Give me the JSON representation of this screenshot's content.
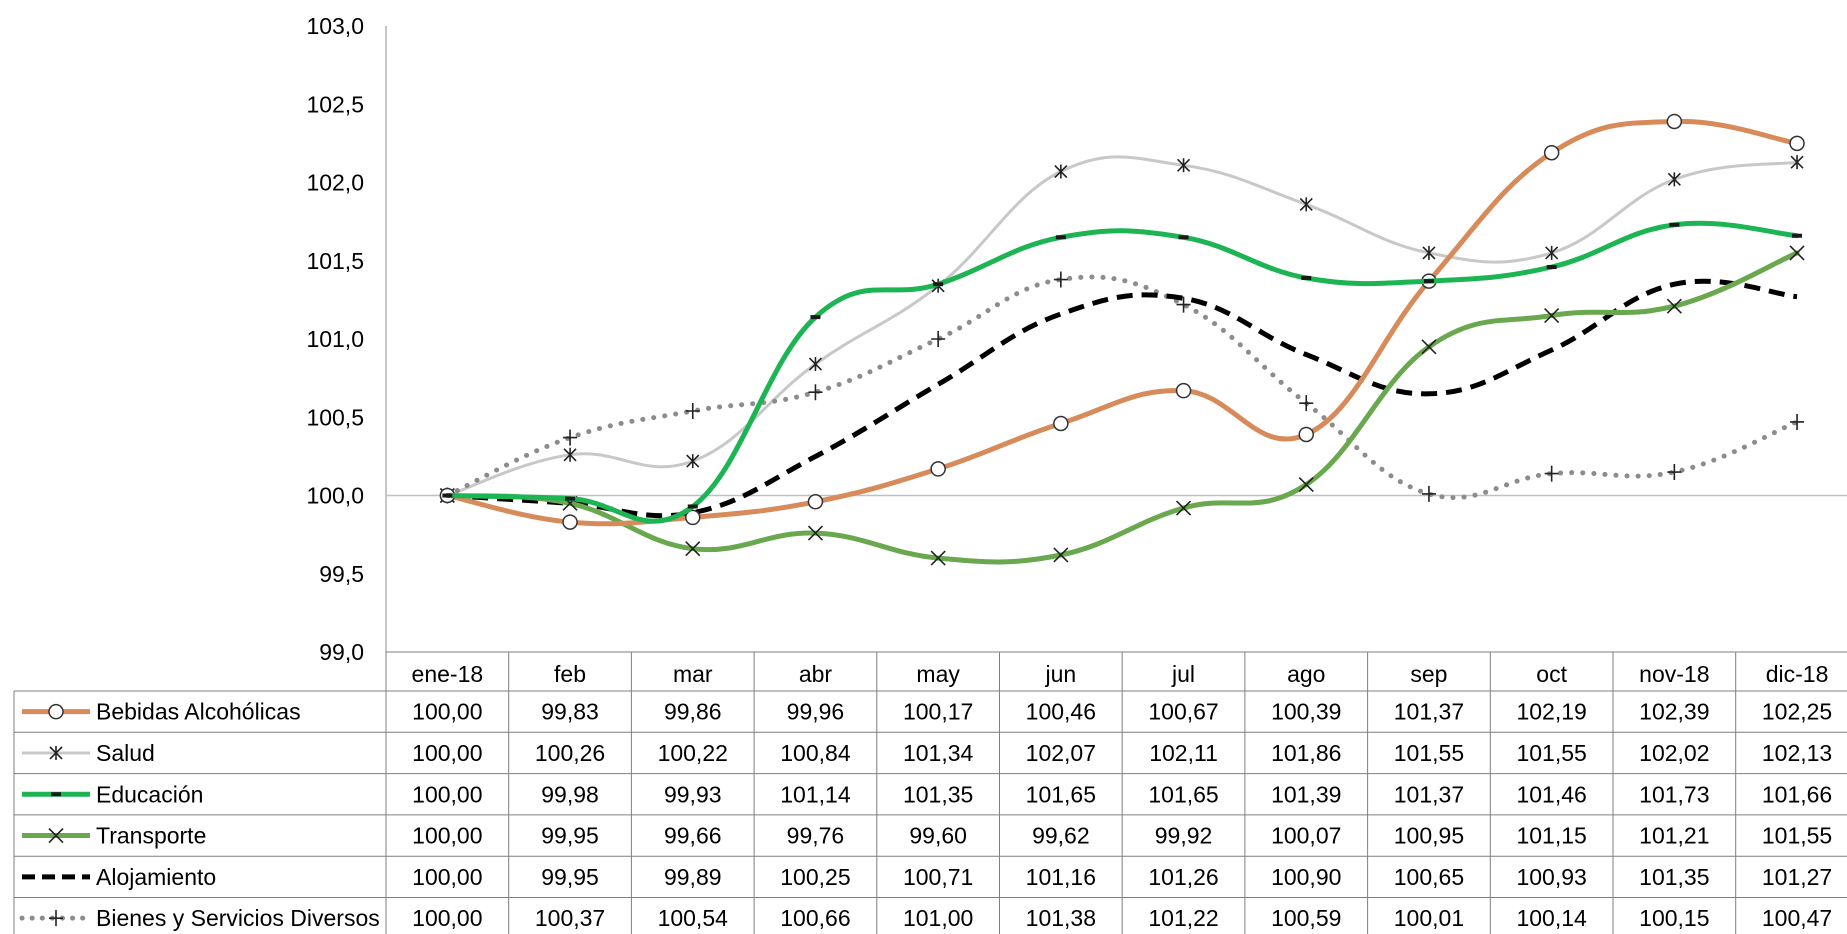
{
  "chart_data": {
    "type": "line",
    "categories": [
      "ene-18",
      "feb",
      "mar",
      "abr",
      "may",
      "jun",
      "jul",
      "ago",
      "sep",
      "oct",
      "nov-18",
      "dic-18"
    ],
    "y_ticks": [
      "99,0",
      "99,5",
      "100,0",
      "100,5",
      "101,0",
      "101,5",
      "102,0",
      "102,5",
      "103,0"
    ],
    "ylim": [
      99.0,
      103.0
    ],
    "baseline": 100.0,
    "grid": false,
    "legend": "data-table",
    "series": [
      {
        "name": "Bebidas Alcohólicas",
        "color": "#d88b5a",
        "marker": "circle",
        "dash": "solid",
        "width": 5,
        "values": [
          100.0,
          99.83,
          99.86,
          99.96,
          100.17,
          100.46,
          100.67,
          100.39,
          101.37,
          102.19,
          102.39,
          102.25
        ],
        "labels": [
          "100,00",
          "99,83",
          "99,86",
          "99,96",
          "100,17",
          "100,46",
          "100,67",
          "100,39",
          "101,37",
          "102,19",
          "102,39",
          "102,25"
        ]
      },
      {
        "name": "Salud",
        "color": "#c8c8c8",
        "marker": "star",
        "dash": "solid",
        "width": 3,
        "values": [
          100.0,
          100.26,
          100.22,
          100.84,
          101.34,
          102.07,
          102.11,
          101.86,
          101.55,
          101.55,
          102.02,
          102.13
        ],
        "labels": [
          "100,00",
          "100,26",
          "100,22",
          "100,84",
          "101,34",
          "102,07",
          "102,11",
          "101,86",
          "101,55",
          "101,55",
          "102,02",
          "102,13"
        ]
      },
      {
        "name": "Educación",
        "color": "#1db454",
        "marker": "dash",
        "dash": "solid",
        "width": 5,
        "values": [
          100.0,
          99.98,
          99.93,
          101.14,
          101.35,
          101.65,
          101.65,
          101.39,
          101.37,
          101.46,
          101.73,
          101.66
        ],
        "labels": [
          "100,00",
          "99,98",
          "99,93",
          "101,14",
          "101,35",
          "101,65",
          "101,65",
          "101,39",
          "101,37",
          "101,46",
          "101,73",
          "101,66"
        ]
      },
      {
        "name": "Transporte",
        "color": "#6aa84f",
        "marker": "x",
        "dash": "solid",
        "width": 5,
        "values": [
          100.0,
          99.95,
          99.66,
          99.76,
          99.6,
          99.62,
          99.92,
          100.07,
          100.95,
          101.15,
          101.21,
          101.55
        ],
        "labels": [
          "100,00",
          "99,95",
          "99,66",
          "99,76",
          "99,60",
          "99,62",
          "99,92",
          "100,07",
          "100,95",
          "101,15",
          "101,21",
          "101,55"
        ]
      },
      {
        "name": "Alojamiento",
        "color": "#000000",
        "marker": "none",
        "dash": "dashed",
        "width": 5,
        "values": [
          100.0,
          99.95,
          99.89,
          100.25,
          100.71,
          101.16,
          101.26,
          100.9,
          100.65,
          100.93,
          101.35,
          101.27
        ],
        "labels": [
          "100,00",
          "99,95",
          "99,89",
          "100,25",
          "100,71",
          "101,16",
          "101,26",
          "100,90",
          "100,65",
          "100,93",
          "101,35",
          "101,27"
        ]
      },
      {
        "name": "Bienes y Servicios Diversos",
        "color": "#8c8c8c",
        "marker": "plus",
        "dash": "dotted",
        "width": 5,
        "values": [
          100.0,
          100.37,
          100.54,
          100.66,
          101.0,
          101.38,
          101.22,
          100.59,
          100.01,
          100.14,
          100.15,
          100.47
        ],
        "labels": [
          "100,00",
          "100,37",
          "100,54",
          "100,66",
          "101,00",
          "101,38",
          "101,22",
          "100,59",
          "100,01",
          "100,14",
          "100,15",
          "100,47"
        ]
      }
    ]
  }
}
